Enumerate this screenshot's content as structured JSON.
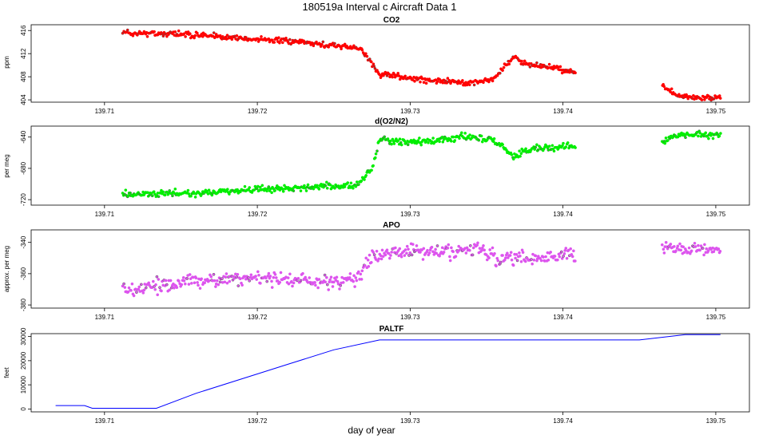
{
  "title": "180519a   Interval c Aircraft Data 1",
  "xlabel": "day of year",
  "chart_data": [
    {
      "type": "scatter",
      "title": "CO2",
      "ylabel": "ppm",
      "color": "#ff0000",
      "xlim": [
        139.7052,
        139.7522
      ],
      "xticks": [
        139.71,
        139.72,
        139.73,
        139.74,
        139.75
      ],
      "xtick_labels": [
        "139.71",
        "139.72",
        "139.73",
        "139.74",
        "139.75"
      ],
      "ylim": [
        403.6,
        417.0
      ],
      "yticks": [
        404,
        408,
        412,
        416
      ],
      "ytick_labels": [
        "404",
        "408",
        "412",
        "416"
      ],
      "segments": [
        {
          "x": [
            139.7112,
            139.715,
            139.7165,
            139.72,
            139.725,
            139.7268,
            139.7275,
            139.728,
            139.73,
            139.732,
            139.734,
            139.7355,
            139.7362,
            139.7368,
            139.7375,
            139.739,
            139.7408
          ],
          "y": [
            415.6,
            415.4,
            415.1,
            414.5,
            413.5,
            412.8,
            410.2,
            408.3,
            407.8,
            407.3,
            406.9,
            407.6,
            410.0,
            411.4,
            410.3,
            409.6,
            408.9
          ],
          "noise": 0.45
        },
        {
          "x": [
            139.7465,
            139.7475,
            139.749,
            139.7503
          ],
          "y": [
            406.5,
            404.6,
            404.3,
            404.4
          ],
          "noise": 0.4
        }
      ]
    },
    {
      "type": "scatter",
      "title": "d(O2/N2)",
      "ylabel": "per meg",
      "color": "#00ee00",
      "xlim": [
        139.7052,
        139.7522
      ],
      "xticks": [
        139.71,
        139.72,
        139.73,
        139.74,
        139.75
      ],
      "xtick_labels": [
        "139.71",
        "139.72",
        "139.73",
        "139.74",
        "139.75"
      ],
      "ylim": [
        -727,
        -626
      ],
      "yticks": [
        -720,
        -680,
        -640
      ],
      "ytick_labels": [
        "-720",
        "-680",
        "-640"
      ],
      "segments": [
        {
          "x": [
            139.7112,
            139.715,
            139.72,
            139.725,
            139.7265,
            139.7275,
            139.728,
            139.73,
            139.732,
            139.734,
            139.7355,
            139.7362,
            139.7368,
            139.738,
            139.7408
          ],
          "y": [
            -714,
            -712,
            -707,
            -703,
            -702,
            -680,
            -643,
            -647,
            -644,
            -639,
            -645,
            -655,
            -665,
            -655,
            -651
          ],
          "noise": 4
        },
        {
          "x": [
            139.7465,
            139.7475,
            139.749,
            139.7503
          ],
          "y": [
            -646,
            -637,
            -637,
            -638
          ],
          "noise": 3.5
        }
      ]
    },
    {
      "type": "scatter",
      "title": "APO",
      "ylabel": "approx. per meg",
      "color": "#dd55ee",
      "xlim": [
        139.7052,
        139.7522
      ],
      "xticks": [
        139.71,
        139.72,
        139.73,
        139.74,
        139.75
      ],
      "xtick_labels": [
        "139.71",
        "139.72",
        "139.73",
        "139.74",
        "139.75"
      ],
      "ylim": [
        -382,
        -332
      ],
      "yticks": [
        -380,
        -360,
        -340
      ],
      "ytick_labels": [
        "-380",
        "-360",
        "-340"
      ],
      "segments": [
        {
          "x": [
            139.7112,
            139.715,
            139.72,
            139.725,
            139.7268,
            139.7275,
            139.729,
            139.732,
            139.7345,
            139.736,
            139.7375,
            139.7408
          ],
          "y": [
            -371,
            -365,
            -363,
            -365,
            -361,
            -348,
            -346,
            -346,
            -344,
            -352,
            -350,
            -348
          ],
          "noise": 4
        },
        {
          "x": [
            139.7465,
            139.748,
            139.7503
          ],
          "y": [
            -343,
            -344,
            -345
          ],
          "noise": 3.5
        }
      ]
    },
    {
      "type": "line",
      "title": "PALTF",
      "ylabel": "feet",
      "color": "#0000ff",
      "xlim": [
        139.7052,
        139.7522
      ],
      "xticks": [
        139.71,
        139.72,
        139.73,
        139.74,
        139.75
      ],
      "xtick_labels": [
        "139.71",
        "139.72",
        "139.73",
        "139.74",
        "139.75"
      ],
      "ylim": [
        -1200,
        31200
      ],
      "yticks": [
        0,
        10000,
        20000,
        30000
      ],
      "ytick_labels": [
        "0",
        "10000",
        "20000",
        "30000"
      ],
      "x": [
        139.7068,
        139.7087,
        139.7092,
        139.7134,
        139.716,
        139.72,
        139.722,
        139.725,
        139.728,
        139.735,
        139.745,
        139.748,
        139.7503
      ],
      "y": [
        1400,
        1400,
        300,
        300,
        6500,
        14500,
        18500,
        24500,
        28600,
        28600,
        28600,
        30800,
        30800
      ]
    }
  ]
}
